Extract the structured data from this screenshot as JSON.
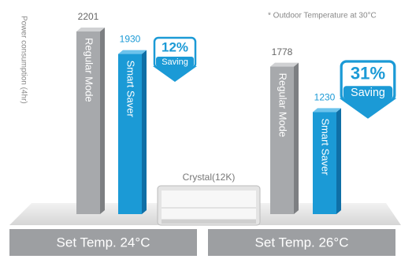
{
  "chart_data": {
    "type": "bar",
    "y_label": "Power consumption (4hr)",
    "note": "* Outdoor Temperature at 30°C",
    "product": "Crystal(12K)",
    "categories": [
      "Set Temp. 24°C",
      "Set Temp. 26°C"
    ],
    "series": [
      {
        "name": "Regular Mode",
        "color": "#a7a9ac",
        "values": [
          2201,
          1778
        ]
      },
      {
        "name": "Smart Saver",
        "color": "#1b9ad6",
        "values": [
          1930,
          1230
        ]
      }
    ],
    "savings": {
      "values": [
        12,
        31
      ],
      "value_labels": [
        "12%",
        "31%"
      ],
      "label": "Saving",
      "color": "#1b9ad6"
    }
  }
}
